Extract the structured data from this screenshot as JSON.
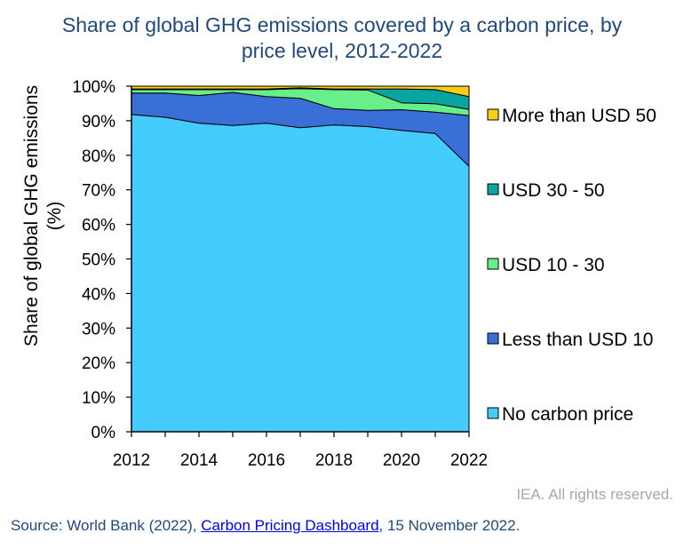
{
  "header": {
    "title_line1": "Share of global GHG emissions covered by a carbon price, by",
    "title_line2": "price level, 2012-2022"
  },
  "footer": {
    "rights": "IEA. All rights reserved.",
    "source_prefix": "Source: World Bank (2022), ",
    "source_link": "Carbon Pricing Dashboard",
    "source_suffix": ", 15 November 2022."
  },
  "colors": {
    "no_price": "#45ccfe",
    "lt10": "#3a6fd7",
    "p10_30": "#66ef8a",
    "p30_50": "#0aa5a0",
    "gt50": "#ffcc1a",
    "title": "#1f497d"
  },
  "chart_data": {
    "type": "area",
    "stacked": true,
    "title": "Share of global GHG emissions covered by a carbon price, by price level, 2012-2022",
    "xlabel": "",
    "ylabel": "Share of global GHG emissions (%)",
    "ylabel_line1": "Share of global GHG emissions",
    "ylabel_line2": "(%)",
    "x": [
      2012,
      2013,
      2014,
      2015,
      2016,
      2017,
      2018,
      2019,
      2020,
      2021,
      2022
    ],
    "x_ticks": [
      "2012",
      "2014",
      "2016",
      "2018",
      "2020",
      "2022"
    ],
    "x_tick_values": [
      2012,
      2014,
      2016,
      2018,
      2020,
      2022
    ],
    "ylim": [
      0,
      100
    ],
    "y_ticks": [
      "0%",
      "10%",
      "20%",
      "30%",
      "40%",
      "50%",
      "60%",
      "70%",
      "80%",
      "90%",
      "100%"
    ],
    "y_tick_values": [
      0,
      10,
      20,
      30,
      40,
      50,
      60,
      70,
      80,
      90,
      100
    ],
    "grid": false,
    "legend_position": "right",
    "series": [
      {
        "name": "No carbon price",
        "key": "no_price",
        "values": [
          91.8,
          91.0,
          89.3,
          88.6,
          89.3,
          88.0,
          88.8,
          88.3,
          87.2,
          86.3,
          76.8
        ]
      },
      {
        "name": "Less than USD 10",
        "key": "lt10",
        "values": [
          6.2,
          7.0,
          8.0,
          9.6,
          7.7,
          8.5,
          4.7,
          4.7,
          6.0,
          6.2,
          14.7
        ]
      },
      {
        "name": "USD 10 - 30",
        "key": "p10_30",
        "values": [
          1.0,
          1.0,
          1.7,
          0.8,
          2.0,
          2.8,
          5.5,
          5.9,
          2.0,
          2.4,
          1.8
        ]
      },
      {
        "name": "USD 30 - 50",
        "key": "p30_50",
        "values": [
          0.2,
          0.2,
          0.2,
          0.2,
          0.2,
          0.2,
          0.2,
          0.3,
          4.0,
          4.1,
          3.7
        ]
      },
      {
        "name": "More than USD 50",
        "key": "gt50",
        "values": [
          0.8,
          0.8,
          0.8,
          0.8,
          0.8,
          0.5,
          0.8,
          0.8,
          0.8,
          1.0,
          3.0
        ]
      }
    ],
    "legend_order": [
      "gt50",
      "p30_50",
      "p10_30",
      "lt10",
      "no_price"
    ]
  }
}
